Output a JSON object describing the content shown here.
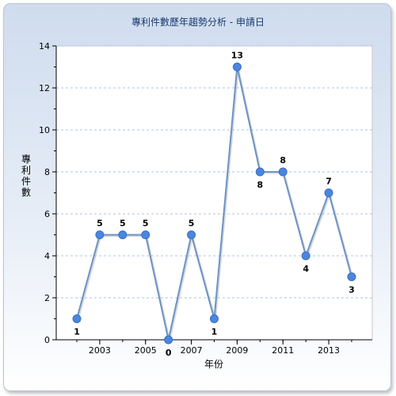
{
  "chart_data": {
    "type": "line",
    "title": "專利件數歷年趨勢分析 - 申請日",
    "xlabel": "年份",
    "ylabel": "專利件數",
    "x": [
      2002,
      2003,
      2004,
      2005,
      2006,
      2007,
      2008,
      2009,
      2010,
      2011,
      2012,
      2013,
      2014
    ],
    "values": [
      1,
      5,
      5,
      5,
      0,
      5,
      1,
      13,
      8,
      8,
      4,
      7,
      3
    ],
    "xticks": [
      "2003",
      "2005",
      "2007",
      "2009",
      "2011",
      "2013"
    ],
    "yticks": [
      "0",
      "2",
      "4",
      "6",
      "8",
      "10",
      "12",
      "14"
    ],
    "ylim": [
      0,
      14
    ],
    "grid": "y-major",
    "legend": "none",
    "colors": {
      "line": "#6f93c2",
      "marker": "#4a86e0",
      "grid": "#a8c4ec"
    }
  }
}
